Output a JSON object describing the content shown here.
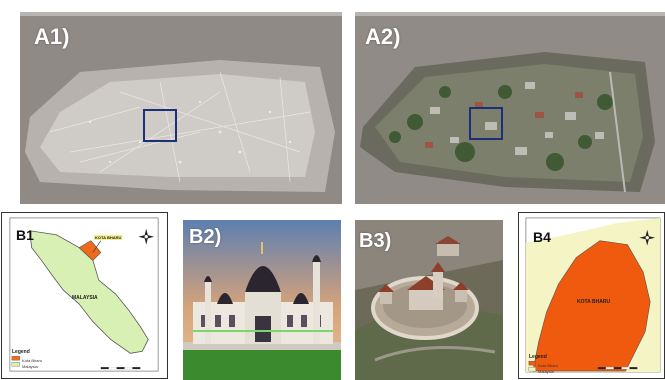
{
  "panels": {
    "a1": {
      "label": "A1)"
    },
    "a2": {
      "label": "A2)"
    },
    "b1": {
      "label": "B1",
      "callout": "KOTA BHARU",
      "region_label": "MALAYSIA",
      "legend_title": "Legend",
      "legend_items": [
        "Kota Bharu",
        "Malaysia"
      ],
      "colors": {
        "highlight": "#ef6a1a",
        "land": "#d9f0b4",
        "sea": "#ffffff"
      }
    },
    "b2": {
      "label": "B2)"
    },
    "b3": {
      "label": "B3)"
    },
    "b4": {
      "label": "B4",
      "region_label": "KOTA BHARU",
      "legend_title": "Legend",
      "legend_items": [
        "Kota Bharu",
        "Malaysia"
      ],
      "colors": {
        "highlight": "#ef5a0e",
        "land": "#f4f4c4"
      }
    }
  }
}
